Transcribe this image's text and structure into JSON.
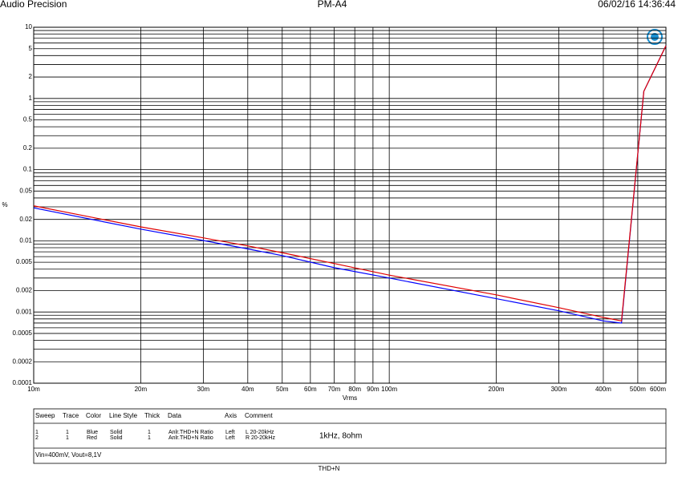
{
  "header": {
    "left": "Audio Precision",
    "center": "PM-A4",
    "right": "06/02/16 14:36:44"
  },
  "chart_data": {
    "type": "line",
    "ylabel": "%",
    "xlabel": "Vrms",
    "log_x": true,
    "log_y": true,
    "grid": true,
    "xlim": [
      0.01,
      0.6
    ],
    "ylim": [
      0.0001,
      10
    ],
    "xticks": [
      {
        "value": 0.01,
        "label": "10m"
      },
      {
        "value": 0.02,
        "label": "20m"
      },
      {
        "value": 0.03,
        "label": "30m"
      },
      {
        "value": 0.04,
        "label": "40m"
      },
      {
        "value": 0.05,
        "label": "50m"
      },
      {
        "value": 0.06,
        "label": "60m"
      },
      {
        "value": 0.07,
        "label": "70m"
      },
      {
        "value": 0.08,
        "label": "80m"
      },
      {
        "value": 0.09,
        "label": "90m"
      },
      {
        "value": 0.1,
        "label": "100m"
      },
      {
        "value": 0.2,
        "label": "200m"
      },
      {
        "value": 0.3,
        "label": "300m"
      },
      {
        "value": 0.4,
        "label": "400m"
      },
      {
        "value": 0.5,
        "label": "500m"
      },
      {
        "value": 0.6,
        "label": "600m"
      }
    ],
    "yticks": [
      10,
      5,
      2,
      1,
      0.5,
      0.2,
      0.1,
      0.05,
      0.02,
      0.01,
      0.005,
      0.002,
      0.001,
      0.0005,
      0.0002,
      0.0001
    ],
    "yminorticks": [
      9,
      8,
      7,
      6,
      4,
      3,
      0.9,
      0.8,
      0.7,
      0.6,
      0.4,
      0.3,
      0.09,
      0.08,
      0.07,
      0.06,
      0.04,
      0.03,
      0.009,
      0.008,
      0.007,
      0.006,
      0.004,
      0.003,
      0.0009,
      0.0008,
      0.0007,
      0.0006,
      0.0004,
      0.0003
    ],
    "x": [
      0.01,
      0.02,
      0.03,
      0.04,
      0.05,
      0.07,
      0.1,
      0.2,
      0.3,
      0.4,
      0.45,
      0.52,
      0.6
    ],
    "series": [
      {
        "sweep": "1",
        "trace": "1",
        "color_name": "Blue",
        "line_style": "Solid",
        "thick": "1",
        "data": "Anlr.THD+N Ratio",
        "axis": "Left",
        "comment": "L 20-20kHz",
        "color": "#0000ff",
        "values": [
          0.029,
          0.0146,
          0.0101,
          0.0077,
          0.0062,
          0.0042,
          0.003,
          0.00154,
          0.00104,
          0.00075,
          0.0007,
          1.26,
          5.5
        ]
      },
      {
        "sweep": "2",
        "trace": "1",
        "color_name": "Red",
        "line_style": "Solid",
        "thick": "1",
        "data": "Anlr.THD+N Ratio",
        "axis": "Left",
        "comment": "R 20-20kHz",
        "color": "#e00000",
        "values": [
          0.031,
          0.0157,
          0.011,
          0.0085,
          0.0068,
          0.0048,
          0.0033,
          0.00174,
          0.00115,
          0.00084,
          0.00075,
          1.26,
          5.5
        ]
      }
    ],
    "legend_columns": [
      "Sweep",
      "Trace",
      "Color",
      "Line Style",
      "Thick",
      "Data",
      "Axis",
      "Comment"
    ],
    "note": "1kHz, 8ohm",
    "footer_note": "Vin=400mV, Vout=8,1V",
    "footer_title": "THD+N"
  }
}
